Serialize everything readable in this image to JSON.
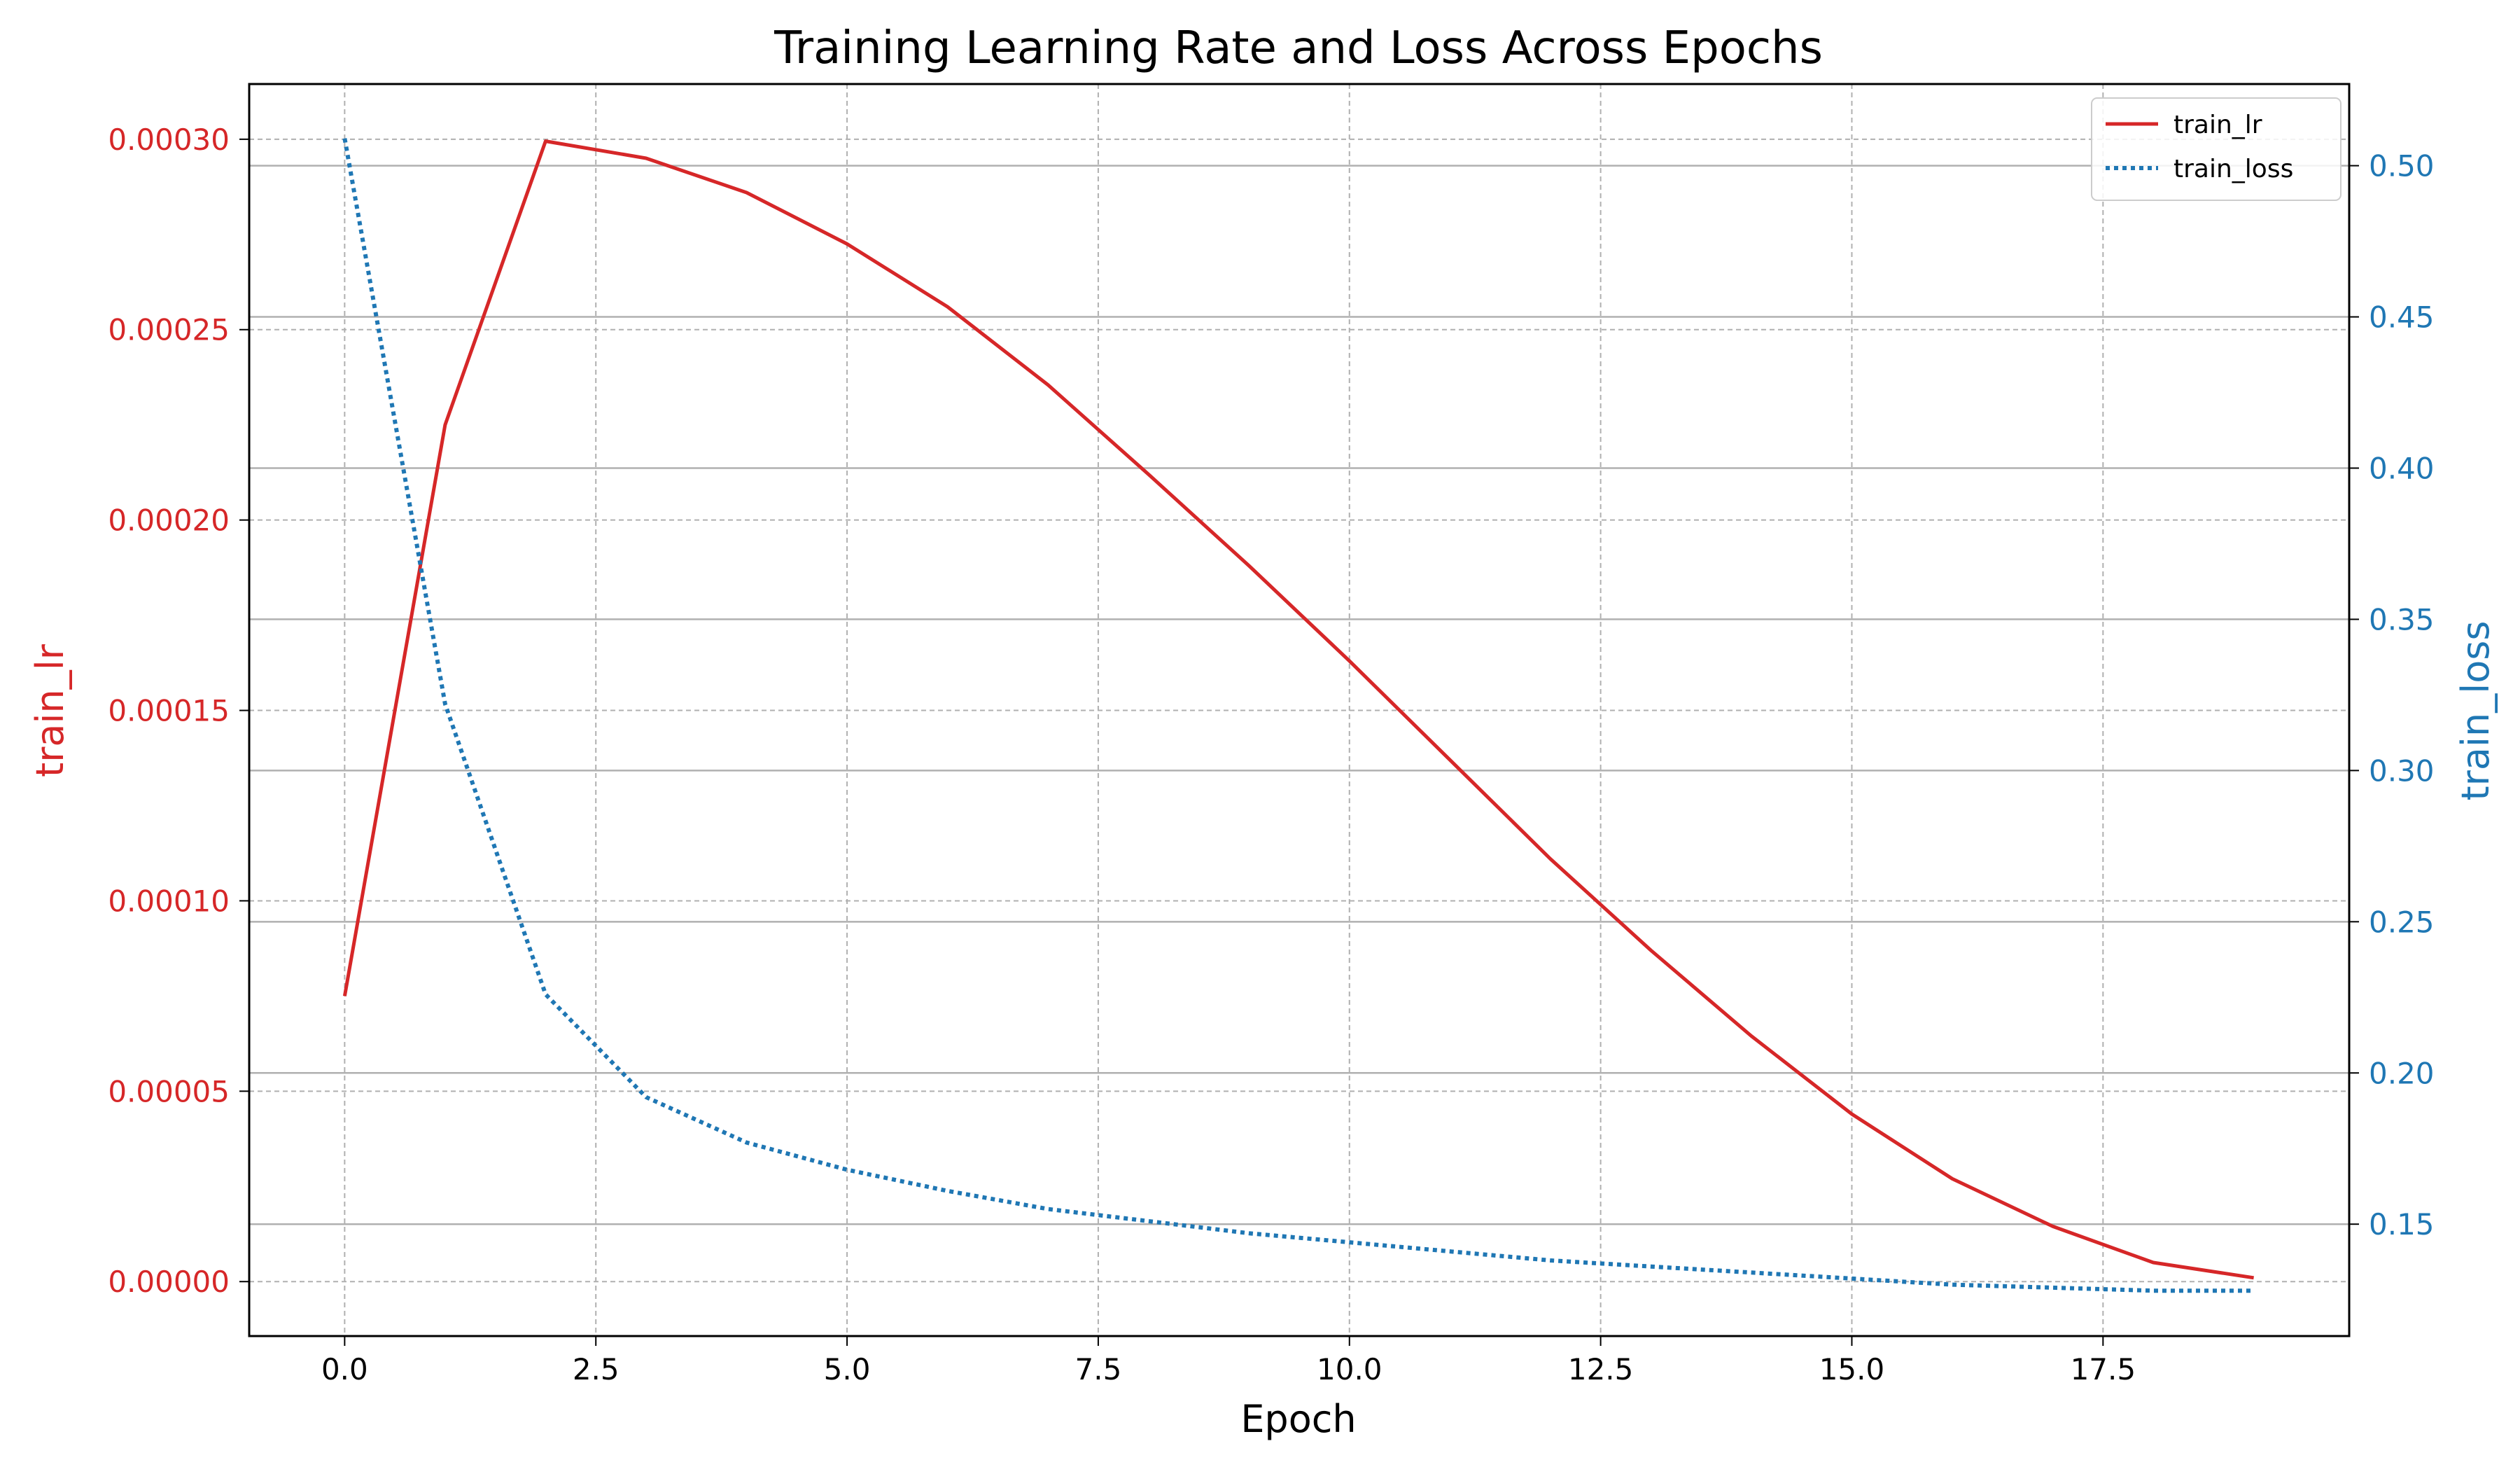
{
  "chart_data": {
    "type": "line",
    "title": "Training Learning Rate and Loss Across Epochs",
    "xlabel": "Epoch",
    "ylabel_left": "train_lr",
    "ylabel_right": "train_loss",
    "xlim": [
      -0.95,
      19.95
    ],
    "ylim_left": [
      -1.43e-05,
      0.0003145
    ],
    "ylim_right": [
      0.113,
      0.527
    ],
    "xticks": [
      0,
      2.5,
      5,
      7.5,
      10,
      12.5,
      15,
      17.5
    ],
    "xtick_labels": [
      "0.0",
      "2.5",
      "5.0",
      "7.5",
      "10.0",
      "12.5",
      "15.0",
      "17.5"
    ],
    "yticks_left": [
      0,
      5e-05,
      0.0001,
      0.00015,
      0.0002,
      0.00025,
      0.0003
    ],
    "ytick_labels_left": [
      "0.00000",
      "0.00005",
      "0.00010",
      "0.00015",
      "0.00020",
      "0.00025",
      "0.00030"
    ],
    "yticks_right": [
      0.15,
      0.2,
      0.25,
      0.3,
      0.35,
      0.4,
      0.45,
      0.5
    ],
    "ytick_labels_right": [
      "0.15",
      "0.20",
      "0.25",
      "0.30",
      "0.35",
      "0.40",
      "0.45",
      "0.50"
    ],
    "grid": true,
    "legend_position": "top-right",
    "x": [
      0,
      1,
      2,
      3,
      4,
      5,
      6,
      7,
      8,
      9,
      10,
      11,
      12,
      13,
      14,
      15,
      16,
      17,
      18,
      19
    ],
    "series": [
      {
        "name": "train_lr",
        "axis": "left",
        "style": "solid",
        "color": "#d62728",
        "values": [
          7.5e-05,
          0.000225,
          0.0002995,
          0.000295,
          0.000286,
          0.0002725,
          0.000256,
          0.0002355,
          0.000212,
          0.000188,
          0.000163,
          0.000137,
          0.000111,
          8.7e-05,
          6.45e-05,
          4.4e-05,
          2.7e-05,
          1.45e-05,
          5e-06,
          1e-06
        ]
      },
      {
        "name": "train_loss",
        "axis": "right",
        "style": "dotted",
        "color": "#1f77b4",
        "values": [
          0.509,
          0.322,
          0.226,
          0.192,
          0.177,
          0.168,
          0.161,
          0.155,
          0.151,
          0.147,
          0.144,
          0.141,
          0.138,
          0.136,
          0.134,
          0.132,
          0.13,
          0.129,
          0.128,
          0.128
        ]
      }
    ]
  }
}
